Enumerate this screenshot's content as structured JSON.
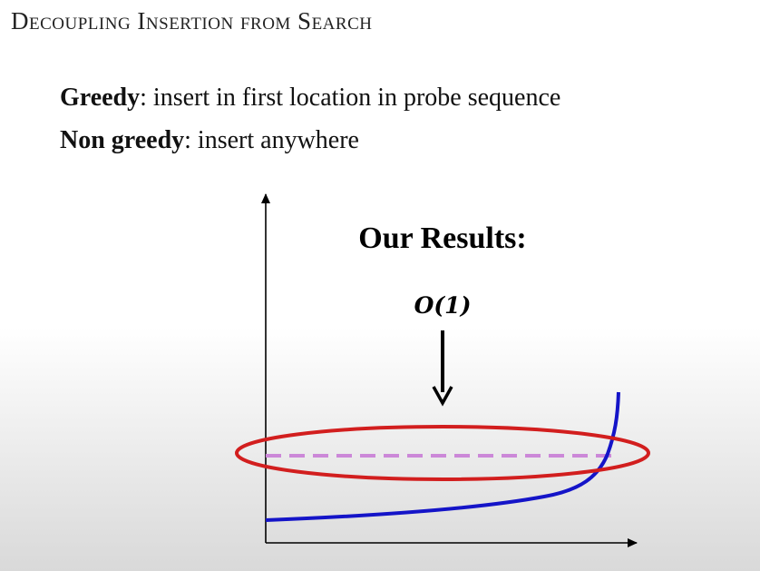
{
  "slide": {
    "title": "Decoupling Insertion from Search"
  },
  "bullets": [
    {
      "term": "Greedy",
      "rest": ": insert in first location in probe sequence"
    },
    {
      "term": "Non greedy",
      "rest": ": insert anywhere"
    }
  ],
  "diagram": {
    "heading": "Our Results:",
    "annotation": "O(1)",
    "colors": {
      "axes": "#000000",
      "curve": "#1414c8",
      "dashed_line": "#cc88d8",
      "ellipse": "#d21e1e",
      "arrow": "#000000"
    }
  }
}
